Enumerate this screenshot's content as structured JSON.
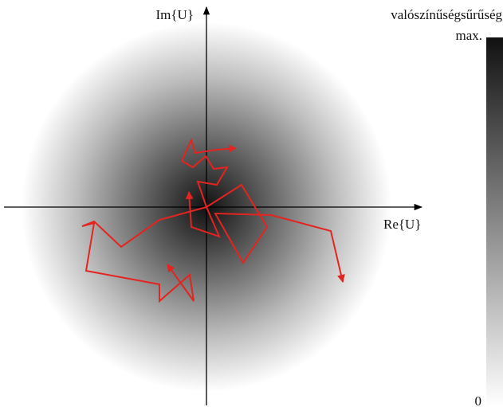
{
  "axes": {
    "x_label": "Re{U}",
    "y_label": "Im{U}"
  },
  "colorbar": {
    "title": "valószínűségsűrűség",
    "max_label": "max.",
    "min_label": "0"
  }
}
